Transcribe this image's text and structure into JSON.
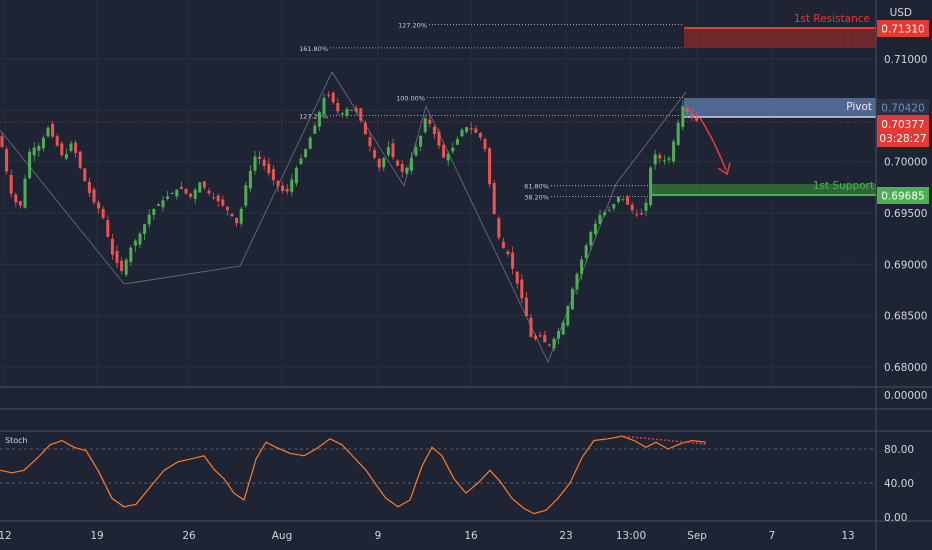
{
  "currency": "USD",
  "colors": {
    "background": "#1e2433",
    "bull": "#26a69a",
    "bull_bright": "#4caf50",
    "bear": "#ef5350",
    "resistance": "#e53935",
    "support": "#4caf50",
    "pivot": "#5b7db8",
    "stoch_line": "#ff7b24",
    "price_badge": "#e53935",
    "grid": "#2a3142",
    "axis_text": "#d1d4dc"
  },
  "annotations": {
    "resistance": {
      "label": "1st Resistance",
      "price": 0.7131,
      "price_label": "0.71310"
    },
    "pivot": {
      "label": "Pivot",
      "price": 0.7042,
      "price_label": "0.70420"
    },
    "support": {
      "label": "1st Support",
      "price": 0.69685,
      "price_label": "0.69685"
    },
    "current_price": {
      "price": 0.70377,
      "price_label": "0.70377",
      "countdown": "03:28:27"
    },
    "fib_levels": [
      {
        "label": "127.20%",
        "price": 0.71335
      },
      {
        "label": "161.80%",
        "price": 0.71108
      },
      {
        "label": "100.00%",
        "price": 0.70624
      },
      {
        "label": "127.20%",
        "price": 0.70451
      },
      {
        "label": "61.80%",
        "price": 0.69766
      },
      {
        "label": "38.20%",
        "price": 0.69661
      }
    ]
  },
  "panes": {
    "volume_label": "0.00000",
    "stoch_label": "Stoch"
  },
  "chart_data": {
    "type": "candlestick",
    "price_axis": {
      "ticks": [
        "0.71000",
        "0.70500",
        "0.70000",
        "0.69500",
        "0.69000",
        "0.68500",
        "0.68000"
      ],
      "tick_values": [
        0.71,
        0.705,
        0.7,
        0.695,
        0.69,
        0.685,
        0.68
      ]
    },
    "time_axis": {
      "labels": [
        "12",
        "19",
        "26",
        "Aug",
        "9",
        "16",
        "23",
        "13:00",
        "Sep",
        "7",
        "13"
      ]
    },
    "price_path": [
      [
        0,
        0.7025
      ],
      [
        5,
        0.6998
      ],
      [
        12,
        0.6965
      ],
      [
        20,
        0.6955
      ],
      [
        30,
        0.7012
      ],
      [
        40,
        0.7016
      ],
      [
        48,
        0.7033
      ],
      [
        56,
        0.7018
      ],
      [
        64,
        0.7002
      ],
      [
        72,
        0.702
      ],
      [
        82,
        0.6988
      ],
      [
        92,
        0.6963
      ],
      [
        102,
        0.695
      ],
      [
        112,
        0.691
      ],
      [
        122,
        0.6893
      ],
      [
        130,
        0.6915
      ],
      [
        140,
        0.693
      ],
      [
        150,
        0.695
      ],
      [
        160,
        0.696
      ],
      [
        170,
        0.6968
      ],
      [
        180,
        0.6975
      ],
      [
        190,
        0.6965
      ],
      [
        200,
        0.698
      ],
      [
        210,
        0.6968
      ],
      [
        220,
        0.696
      ],
      [
        230,
        0.695
      ],
      [
        238,
        0.6938
      ],
      [
        246,
        0.6978
      ],
      [
        256,
        0.7008
      ],
      [
        266,
        0.6993
      ],
      [
        276,
        0.6978
      ],
      [
        286,
        0.6968
      ],
      [
        296,
        0.6993
      ],
      [
        306,
        0.7013
      ],
      [
        316,
        0.7038
      ],
      [
        326,
        0.7068
      ],
      [
        332,
        0.706
      ],
      [
        340,
        0.7045
      ],
      [
        348,
        0.7052
      ],
      [
        358,
        0.7048
      ],
      [
        366,
        0.7025
      ],
      [
        374,
        0.7005
      ],
      [
        380,
        0.6993
      ],
      [
        388,
        0.7015
      ],
      [
        396,
        0.6998
      ],
      [
        404,
        0.6988
      ],
      [
        412,
        0.7005
      ],
      [
        420,
        0.7023
      ],
      [
        426,
        0.7045
      ],
      [
        434,
        0.7028
      ],
      [
        444,
        0.7003
      ],
      [
        454,
        0.7015
      ],
      [
        464,
        0.7035
      ],
      [
        474,
        0.703
      ],
      [
        484,
        0.702
      ],
      [
        492,
        0.696
      ],
      [
        500,
        0.692
      ],
      [
        508,
        0.691
      ],
      [
        516,
        0.6885
      ],
      [
        524,
        0.686
      ],
      [
        532,
        0.6825
      ],
      [
        540,
        0.683
      ],
      [
        548,
        0.682
      ],
      [
        556,
        0.683
      ],
      [
        564,
        0.6845
      ],
      [
        572,
        0.6875
      ],
      [
        580,
        0.69
      ],
      [
        590,
        0.693
      ],
      [
        600,
        0.6948
      ],
      [
        610,
        0.6953
      ],
      [
        620,
        0.6968
      ],
      [
        630,
        0.6955
      ],
      [
        640,
        0.6945
      ],
      [
        648,
        0.6965
      ],
      [
        652,
        0.701
      ],
      [
        660,
        0.7003
      ],
      [
        668,
        0.7
      ],
      [
        676,
        0.7028
      ],
      [
        682,
        0.7055
      ],
      [
        688,
        0.7048
      ],
      [
        694,
        0.7041
      ],
      [
        700,
        0.7038
      ]
    ],
    "stoch_axis": {
      "ticks": [
        "80.00",
        "40.00",
        "0.00"
      ],
      "tick_values": [
        80,
        40,
        0
      ]
    },
    "stoch_path": [
      [
        0,
        55
      ],
      [
        12,
        52
      ],
      [
        24,
        55
      ],
      [
        38,
        70
      ],
      [
        50,
        85
      ],
      [
        62,
        90
      ],
      [
        74,
        82
      ],
      [
        86,
        78
      ],
      [
        98,
        55
      ],
      [
        112,
        22
      ],
      [
        124,
        12
      ],
      [
        136,
        15
      ],
      [
        150,
        35
      ],
      [
        164,
        55
      ],
      [
        178,
        65
      ],
      [
        190,
        68
      ],
      [
        204,
        72
      ],
      [
        214,
        56
      ],
      [
        224,
        45
      ],
      [
        234,
        28
      ],
      [
        244,
        20
      ],
      [
        256,
        68
      ],
      [
        266,
        88
      ],
      [
        276,
        82
      ],
      [
        290,
        75
      ],
      [
        304,
        72
      ],
      [
        316,
        80
      ],
      [
        330,
        92
      ],
      [
        342,
        85
      ],
      [
        354,
        70
      ],
      [
        366,
        55
      ],
      [
        376,
        38
      ],
      [
        386,
        22
      ],
      [
        398,
        12
      ],
      [
        410,
        20
      ],
      [
        422,
        60
      ],
      [
        432,
        82
      ],
      [
        442,
        72
      ],
      [
        454,
        45
      ],
      [
        466,
        28
      ],
      [
        478,
        40
      ],
      [
        490,
        55
      ],
      [
        500,
        42
      ],
      [
        512,
        22
      ],
      [
        524,
        10
      ],
      [
        534,
        4
      ],
      [
        546,
        8
      ],
      [
        558,
        22
      ],
      [
        570,
        40
      ],
      [
        582,
        70
      ],
      [
        594,
        90
      ],
      [
        608,
        92
      ],
      [
        622,
        95
      ],
      [
        634,
        90
      ],
      [
        646,
        82
      ],
      [
        656,
        88
      ],
      [
        668,
        80
      ],
      [
        680,
        86
      ],
      [
        692,
        90
      ],
      [
        706,
        88
      ]
    ]
  }
}
